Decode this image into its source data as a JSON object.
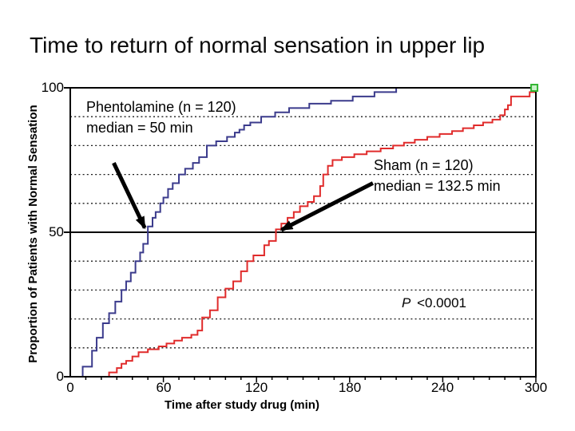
{
  "page_title": "Time to return of normal sensation in upper lip",
  "chart_data": {
    "type": "line",
    "variant": "kaplan-meier-step",
    "title": "Time to return of normal sensation in upper lip",
    "xlabel": "Time after study drug (min)",
    "ylabel": "Proportion of Patients with Normal Sensation",
    "xlim": [
      0,
      300
    ],
    "ylim": [
      0,
      100
    ],
    "x_ticks": [
      0,
      60,
      120,
      180,
      240,
      300
    ],
    "x_minor_tick_step": 10,
    "y_ticks": [
      0,
      50,
      100
    ],
    "y_gridlines_dashed": [
      10,
      20,
      30,
      40,
      60,
      70,
      80,
      90
    ],
    "y_gridline_solid": 50,
    "legend_position": "direct-labels-no-legend-box",
    "grid": "horizontal only",
    "series": [
      {
        "name": "Phentolamine",
        "n": 120,
        "median_min": 50,
        "color": "#3b3b8c",
        "start_time": 8,
        "end_time": 225,
        "points": [
          [
            8,
            3.5
          ],
          [
            14,
            9
          ],
          [
            17,
            13.5
          ],
          [
            21,
            18.5
          ],
          [
            25,
            22
          ],
          [
            29,
            26
          ],
          [
            33,
            30
          ],
          [
            36,
            33
          ],
          [
            39,
            36
          ],
          [
            42,
            40
          ],
          [
            45,
            43
          ],
          [
            47,
            46
          ],
          [
            50,
            52
          ],
          [
            53,
            55
          ],
          [
            55,
            57
          ],
          [
            58,
            60
          ],
          [
            60,
            62
          ],
          [
            63,
            65
          ],
          [
            66,
            67
          ],
          [
            70,
            70
          ],
          [
            74,
            72
          ],
          [
            79,
            74
          ],
          [
            83,
            76
          ],
          [
            88,
            80
          ],
          [
            94,
            81.5
          ],
          [
            101,
            83
          ],
          [
            106,
            84.5
          ],
          [
            109,
            85.5
          ],
          [
            112,
            87
          ],
          [
            116,
            88
          ],
          [
            123,
            90
          ],
          [
            132,
            91.5
          ],
          [
            141,
            93
          ],
          [
            154,
            94.5
          ],
          [
            168,
            95.5
          ],
          [
            182,
            97
          ],
          [
            196,
            98.5
          ],
          [
            210,
            100
          ]
        ]
      },
      {
        "name": "Sham",
        "n": 120,
        "median_min": 132.5,
        "color": "#e02b2b",
        "start_time": 14,
        "end_time": 300,
        "points": [
          [
            25,
            1.5
          ],
          [
            30,
            3
          ],
          [
            33,
            4.5
          ],
          [
            36,
            5.5
          ],
          [
            40,
            7
          ],
          [
            44,
            8.5
          ],
          [
            50,
            9.5
          ],
          [
            57,
            10.5
          ],
          [
            62,
            11.5
          ],
          [
            67,
            12.5
          ],
          [
            72,
            13.5
          ],
          [
            78,
            14.5
          ],
          [
            82,
            16
          ],
          [
            85,
            20.5
          ],
          [
            90,
            23
          ],
          [
            95,
            27.5
          ],
          [
            100,
            30.5
          ],
          [
            105,
            33
          ],
          [
            110,
            36.5
          ],
          [
            114,
            40
          ],
          [
            118,
            42
          ],
          [
            125,
            45.5
          ],
          [
            128,
            47
          ],
          [
            132.5,
            51
          ],
          [
            136,
            53
          ],
          [
            140,
            55
          ],
          [
            144,
            57
          ],
          [
            148,
            59
          ],
          [
            153,
            60.5
          ],
          [
            157,
            62.5
          ],
          [
            161,
            66
          ],
          [
            163,
            70
          ],
          [
            166,
            73
          ],
          [
            169,
            75
          ],
          [
            175,
            76
          ],
          [
            183,
            77
          ],
          [
            191,
            78
          ],
          [
            200,
            79
          ],
          [
            208,
            80
          ],
          [
            215,
            81
          ],
          [
            222,
            82
          ],
          [
            230,
            83
          ],
          [
            238,
            84
          ],
          [
            246,
            85
          ],
          [
            253,
            86
          ],
          [
            260,
            87
          ],
          [
            266,
            88
          ],
          [
            272,
            89
          ],
          [
            277,
            90.5
          ],
          [
            280,
            92.5
          ],
          [
            282,
            94
          ],
          [
            284,
            97
          ],
          [
            296,
            98.5
          ],
          [
            300,
            100
          ]
        ]
      }
    ],
    "annotations": {
      "phentolamine_label": {
        "line1": "Phentolamine (n = 120)",
        "line2": "median = 50 min"
      },
      "sham_label": {
        "line1": "Sham (n = 120)",
        "line2": "median = 132.5 min"
      },
      "p_label": {
        "stat": "P",
        "rest": " <0.0001"
      },
      "arrows": [
        {
          "name": "phentolamine-median-arrow",
          "from_t": 28,
          "from_p": 74,
          "to_t": 48,
          "to_p": 51.5
        },
        {
          "name": "sham-median-arrow",
          "from_t": 195,
          "from_p": 67,
          "to_t": 136,
          "to_p": 50.8
        }
      ],
      "endpoint_marker": {
        "t": 299,
        "p": 100,
        "stroke": "#33b633",
        "fill": "#c9f2c9"
      }
    }
  },
  "colors": {
    "background": "#ffffff",
    "axis": "#000000",
    "gridline": "#1a1a1a",
    "text": "#000000",
    "phentolamine": "#3b3b8c",
    "sham": "#e02b2b",
    "marker_green": "#33b633"
  }
}
